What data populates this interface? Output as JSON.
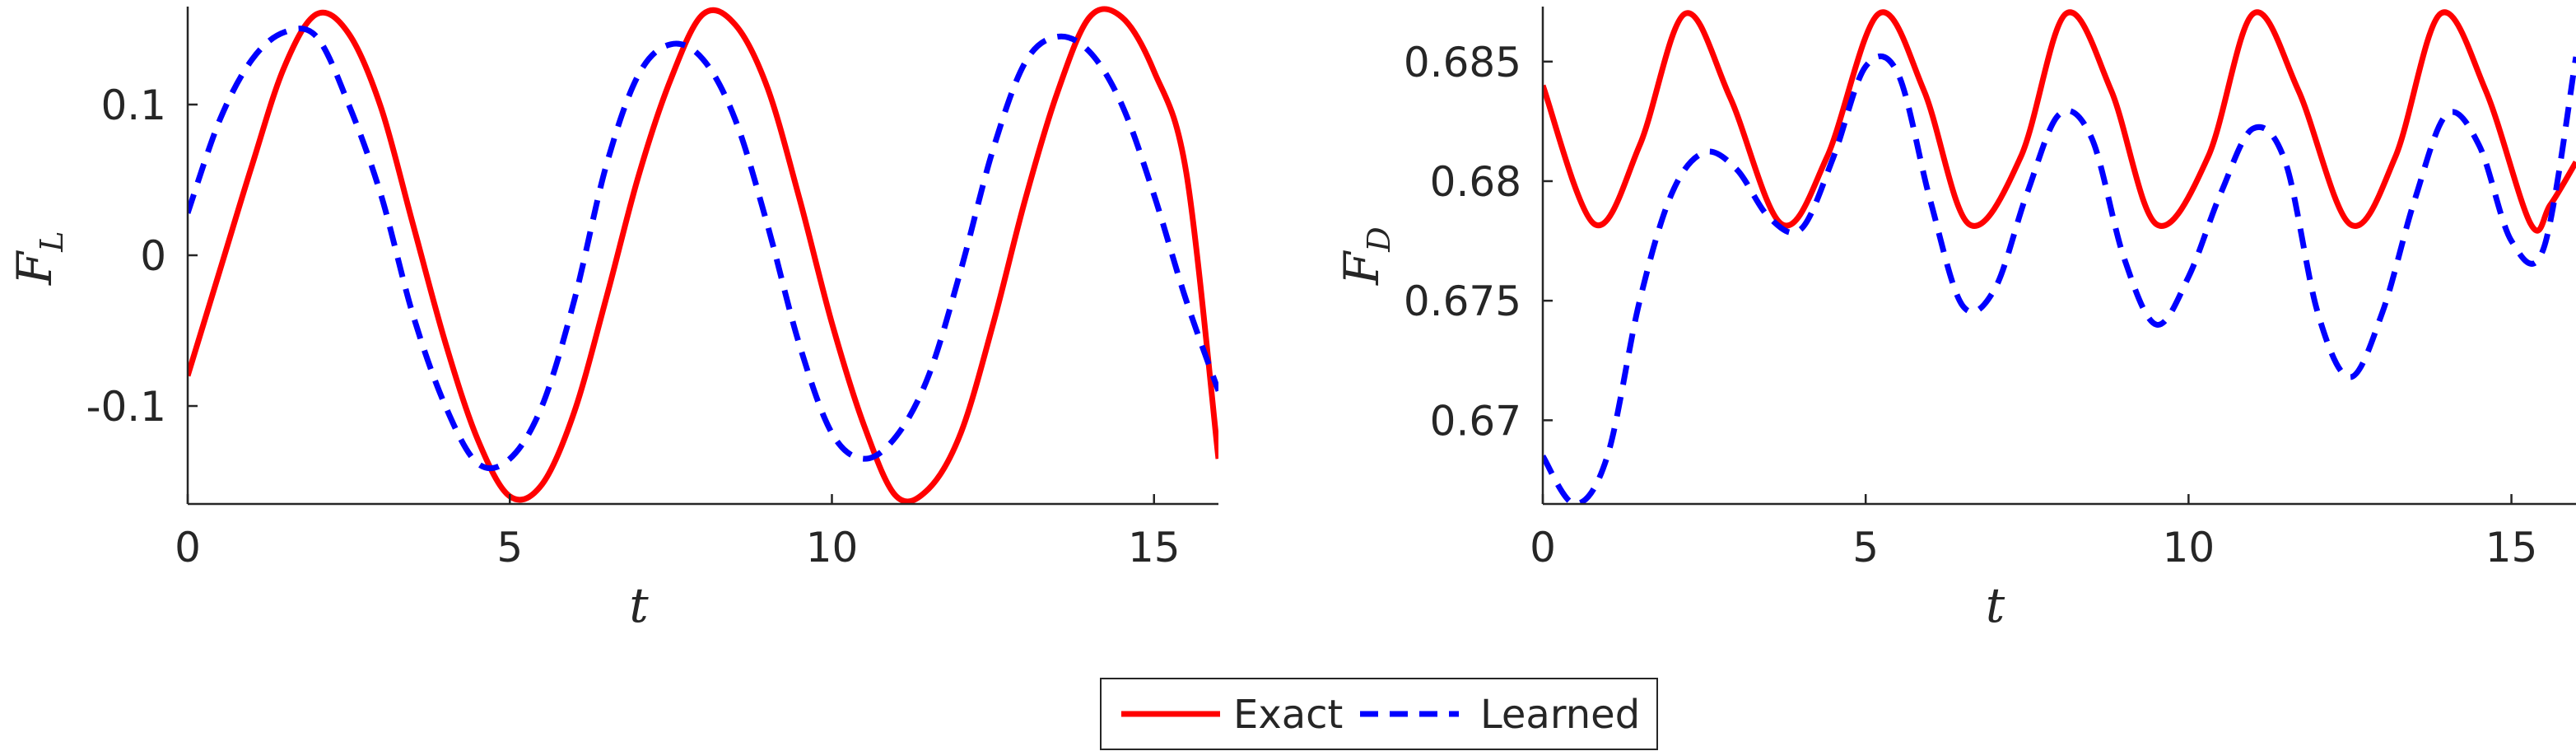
{
  "chart_data": [
    {
      "type": "line",
      "xlabel": "t",
      "ylabel": "F",
      "ylabel_sub": "L",
      "xlim": [
        0,
        16
      ],
      "ylim": [
        -0.165,
        0.165
      ],
      "xticks": [
        0,
        5,
        10,
        15
      ],
      "xtick_labels": [
        "0",
        "5",
        "10",
        "15"
      ],
      "yticks": [
        -0.1,
        0,
        0.1
      ],
      "ytick_labels": [
        "-0.1",
        "0",
        "0.1"
      ],
      "grid": false,
      "series": [
        {
          "name": "Exact",
          "color": "#ff0000",
          "style": "solid",
          "x": [
            0,
            0.5,
            1,
            1.5,
            2,
            2.5,
            3,
            3.5,
            4,
            4.5,
            5,
            5.5,
            6,
            6.5,
            7,
            7.5,
            8,
            8.5,
            9,
            9.5,
            10,
            10.5,
            11,
            11.5,
            12,
            12.5,
            13,
            13.5,
            14,
            14.5,
            15,
            15.5,
            16
          ],
          "y": [
            -0.08,
            -0.01,
            0.06,
            0.125,
            0.16,
            0.147,
            0.098,
            0.02,
            -0.058,
            -0.122,
            -0.16,
            -0.152,
            -0.104,
            -0.028,
            0.053,
            0.117,
            0.16,
            0.153,
            0.111,
            0.037,
            -0.045,
            -0.113,
            -0.16,
            -0.155,
            -0.118,
            -0.046,
            0.037,
            0.108,
            0.158,
            0.158,
            0.122,
            0.055,
            -0.135
          ]
        },
        {
          "name": "Learned",
          "color": "#0000ff",
          "style": "dashed",
          "x": [
            0,
            0.5,
            1,
            1.5,
            2,
            2.5,
            3,
            3.5,
            4,
            4.5,
            5,
            5.5,
            6,
            6.5,
            7,
            7.5,
            8,
            8.5,
            9,
            9.5,
            10,
            10.5,
            11,
            11.5,
            12,
            12.5,
            13,
            13.5,
            14,
            14.5,
            15,
            15.5,
            16
          ],
          "y": [
            0.028,
            0.09,
            0.13,
            0.148,
            0.145,
            0.1,
            0.04,
            -0.04,
            -0.1,
            -0.138,
            -0.135,
            -0.1,
            -0.03,
            0.06,
            0.12,
            0.14,
            0.13,
            0.09,
            0.02,
            -0.06,
            -0.118,
            -0.135,
            -0.12,
            -0.08,
            -0.01,
            0.07,
            0.128,
            0.145,
            0.135,
            0.1,
            0.04,
            -0.03,
            -0.09
          ]
        }
      ]
    },
    {
      "type": "line",
      "xlabel": "t",
      "ylabel": "F",
      "ylabel_sub": "D",
      "xlim": [
        0,
        16
      ],
      "ylim": [
        0.6665,
        0.6873
      ],
      "xticks": [
        0,
        5,
        10,
        15
      ],
      "xtick_labels": [
        "0",
        "5",
        "10",
        "15"
      ],
      "yticks": [
        0.67,
        0.675,
        0.68,
        0.685
      ],
      "ytick_labels": [
        "0.67",
        "0.675",
        "0.68",
        "0.685"
      ],
      "grid": false,
      "series": [
        {
          "name": "Exact",
          "color": "#ff0000",
          "style": "solid",
          "x": [
            0,
            0.8,
            1.5,
            2.2,
            2.9,
            3.7,
            4.4,
            5.2,
            5.9,
            6.6,
            7.4,
            8.1,
            8.8,
            9.5,
            10.3,
            11,
            11.7,
            12.5,
            13.2,
            13.9,
            14.6,
            15.3,
            15.6,
            16
          ],
          "y": [
            0.684,
            0.6782,
            0.6815,
            0.687,
            0.6835,
            0.6782,
            0.681,
            0.687,
            0.6838,
            0.6782,
            0.681,
            0.687,
            0.6838,
            0.6782,
            0.681,
            0.687,
            0.6838,
            0.6782,
            0.681,
            0.687,
            0.6838,
            0.6782,
            0.679,
            0.6808
          ]
        },
        {
          "name": "Learned",
          "color": "#0000ff",
          "style": "dashed",
          "x": [
            0,
            0.5,
            1,
            1.5,
            2,
            2.5,
            3,
            3.5,
            4,
            4.5,
            5,
            5.5,
            6,
            6.5,
            7,
            7.5,
            8,
            8.5,
            9,
            9.5,
            10,
            10.5,
            11,
            11.5,
            12,
            12.5,
            13,
            13.5,
            14,
            14.5,
            15,
            15.5,
            16
          ],
          "y": [
            0.6685,
            0.6665,
            0.6685,
            0.675,
            0.6795,
            0.6812,
            0.6805,
            0.6785,
            0.678,
            0.681,
            0.6848,
            0.6845,
            0.6792,
            0.6748,
            0.6755,
            0.6795,
            0.6828,
            0.6818,
            0.6768,
            0.674,
            0.676,
            0.6795,
            0.6822,
            0.6808,
            0.6745,
            0.6718,
            0.6745,
            0.6792,
            0.6828,
            0.6815,
            0.6775,
            0.6772,
            0.6852
          ]
        }
      ]
    }
  ],
  "legend": {
    "position": "bottom-center",
    "items": [
      {
        "label": "Exact",
        "color": "#ff0000",
        "style": "solid"
      },
      {
        "label": "Learned",
        "color": "#0000ff",
        "style": "dashed"
      }
    ]
  }
}
